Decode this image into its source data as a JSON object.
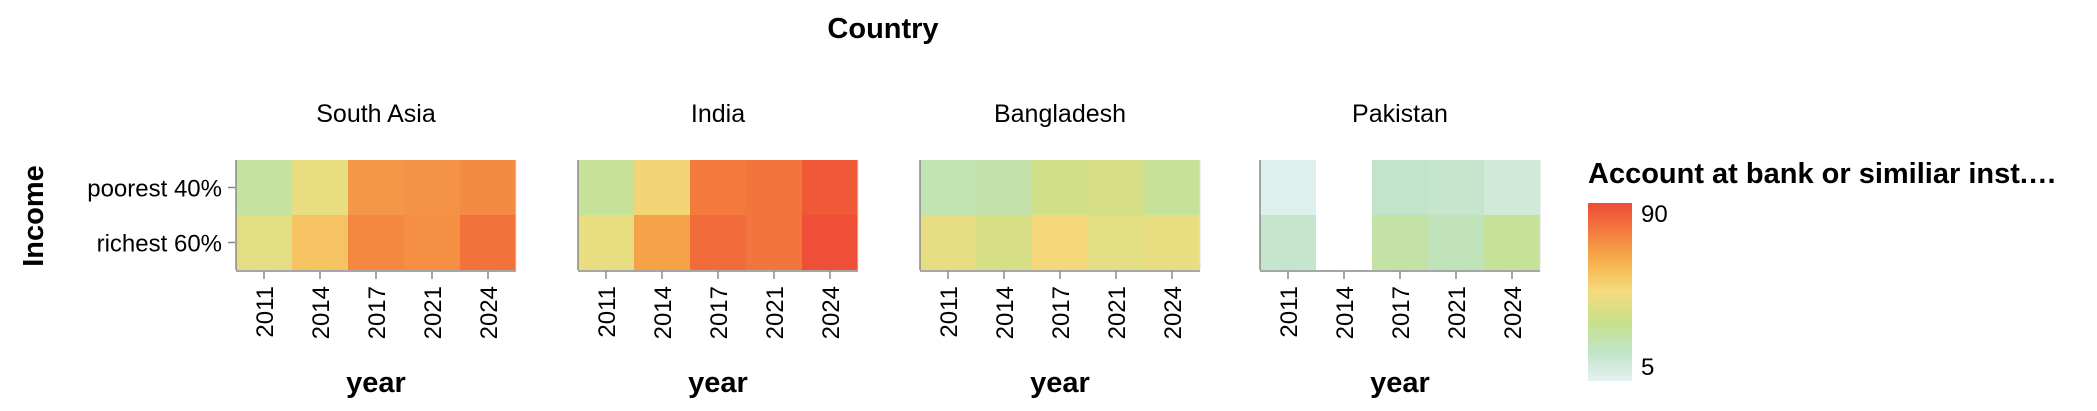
{
  "chart_data": {
    "type": "heatmap",
    "title": "Country",
    "column_field": "Country",
    "xlabel": "year",
    "ylabel": "Income",
    "years": [
      "2011",
      "2014",
      "2017",
      "2021",
      "2024"
    ],
    "rows": [
      "poorest 40%",
      "richest 60%"
    ],
    "facets": [
      {
        "name": "South Asia",
        "values": [
          [
            28,
            44,
            69,
            70,
            72
          ],
          [
            42,
            56,
            73,
            71,
            79
          ]
        ]
      },
      {
        "name": "India",
        "values": [
          [
            30,
            50,
            77,
            78,
            86
          ],
          [
            44,
            66,
            81,
            78,
            89
          ]
        ]
      },
      {
        "name": "Bangladesh",
        "values": [
          [
            24,
            26,
            36,
            38,
            30
          ],
          [
            43,
            38,
            49,
            42,
            44
          ]
        ]
      },
      {
        "name": "Pakistan",
        "values": [
          [
            7,
            null,
            18,
            17,
            13
          ],
          [
            17,
            null,
            27,
            22,
            30
          ]
        ]
      }
    ],
    "legend": {
      "title": "Account at bank or similiar inst.…",
      "min": 5,
      "max": 90,
      "colors": [
        "#e3f2f1",
        "#bfe4c6",
        "#c8e08a",
        "#f4dc7e",
        "#f6b24e",
        "#f37d3e",
        "#ef4b36"
      ]
    }
  }
}
